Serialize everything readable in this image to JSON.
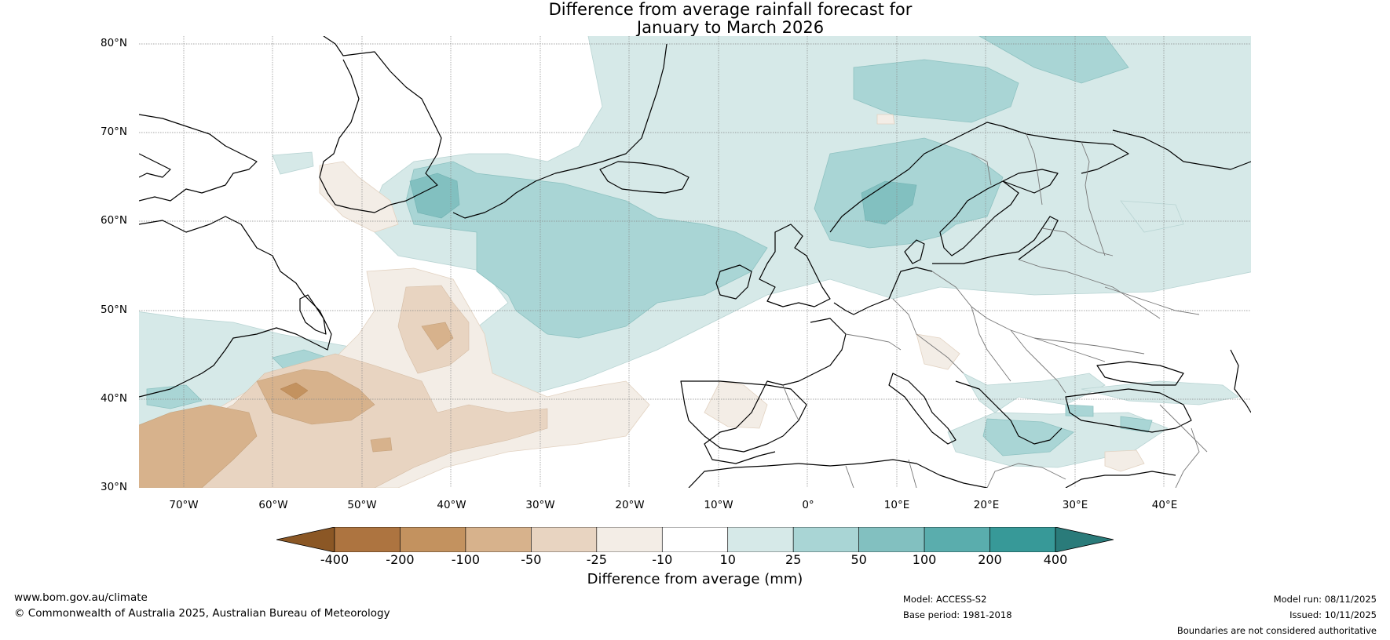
{
  "title": {
    "line1": "Difference from average rainfall forecast for",
    "line2": "January to March 2026"
  },
  "map": {
    "region": "North Atlantic and Europe",
    "lat_labels": [
      "80°N",
      "70°N",
      "60°N",
      "50°N",
      "40°N",
      "30°N"
    ],
    "lon_labels": [
      "70°W",
      "60°W",
      "50°W",
      "40°W",
      "30°W",
      "20°W",
      "10°W",
      "0°",
      "10°E",
      "20°E",
      "30°E",
      "40°E"
    ],
    "colors": {
      "land_outline": "#000000",
      "border": "#777777",
      "grid": "#888888"
    }
  },
  "legend": {
    "title": "Difference from average (mm)",
    "ticks": [
      "-400",
      "-200",
      "-100",
      "-50",
      "-25",
      "-10",
      "10",
      "25",
      "50",
      "100",
      "200",
      "400"
    ],
    "colors": [
      "#8b5725",
      "#ad7440",
      "#c3925f",
      "#d7b28c",
      "#e8d4c1",
      "#f3ede6",
      "#ffffff",
      "#d6e9e8",
      "#a9d5d5",
      "#82c0c0",
      "#5aadad",
      "#379998",
      "#2a7b7a"
    ]
  },
  "footer": {
    "url": "www.bom.gov.au/climate",
    "copyright": "© Commonwealth of Australia 2025, Australian Bureau of Meteorology",
    "model": "Model: ACCESS-S2",
    "base_period": "Base period: 1981-2018",
    "model_run": "Model run: 08/11/2025",
    "issued": "Issued: 10/11/2025",
    "disclaimer": "Boundaries are not considered authoritative"
  }
}
